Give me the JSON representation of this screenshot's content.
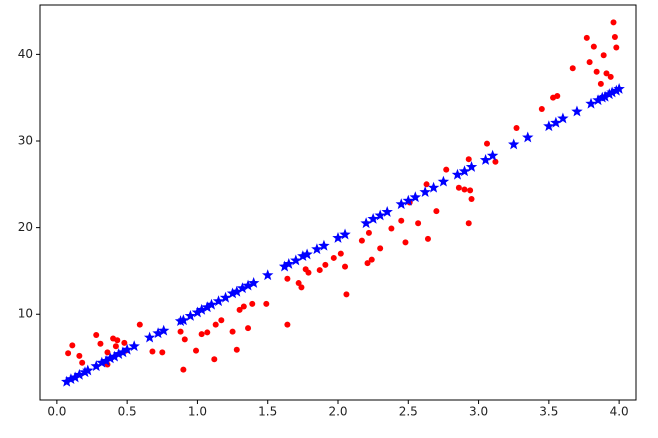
{
  "chart_data": {
    "type": "scatter",
    "xlim": [
      -0.12,
      4.12
    ],
    "ylim": [
      0.1,
      45.7
    ],
    "xticks": [
      {
        "value": 0,
        "label": "0.0"
      },
      0.5,
      {
        "value": 1,
        "label": "1.0"
      },
      1.5,
      {
        "value": 2,
        "label": "2.0"
      },
      2.5,
      {
        "value": 3,
        "label": "3.0"
      },
      3.5,
      {
        "value": 4,
        "label": "4.0"
      }
    ],
    "yticks": [
      10,
      20,
      30,
      40
    ],
    "series": [
      {
        "color": "#ff0000",
        "marker": "circle",
        "x": [
          0.08,
          0.11,
          0.16,
          0.18,
          0.28,
          0.31,
          0.36,
          0.36,
          0.4,
          0.42,
          0.43,
          0.48,
          0.49,
          0.59,
          0.68,
          0.75,
          0.88,
          0.9,
          0.91,
          0.99,
          1.03,
          1.07,
          1.12,
          1.13,
          1.17,
          1.25,
          1.28,
          1.3,
          1.33,
          1.36,
          1.39,
          1.49,
          1.64,
          1.64,
          1.72,
          1.74,
          1.77,
          1.79,
          1.87,
          1.91,
          1.97,
          2.02,
          2.06,
          2.05,
          2.17,
          2.21,
          2.22,
          2.24,
          2.3,
          2.38,
          2.45,
          2.48,
          2.51,
          2.57,
          2.63,
          2.64,
          2.7,
          2.77,
          2.86,
          2.9,
          2.93,
          2.94,
          2.95,
          2.93,
          3.06,
          3.12,
          3.27,
          3.45,
          3.53,
          3.56,
          3.67,
          3.77,
          3.82,
          3.79,
          3.84,
          3.87,
          3.89,
          3.91,
          3.94,
          3.96,
          3.97,
          3.98
        ],
        "values": [
          5.5,
          6.4,
          5.2,
          4.4,
          7.6,
          6.6,
          4.2,
          5.6,
          7.2,
          6.3,
          7.0,
          6.7,
          5.8,
          8.8,
          5.7,
          5.6,
          8.0,
          3.6,
          7.1,
          5.8,
          7.7,
          7.9,
          4.8,
          8.8,
          9.3,
          8.0,
          5.9,
          10.5,
          10.9,
          8.4,
          11.2,
          11.2,
          8.8,
          14.1,
          13.6,
          13.1,
          15.2,
          14.8,
          15.1,
          15.7,
          16.5,
          17.0,
          12.3,
          15.5,
          18.5,
          15.9,
          19.4,
          16.3,
          17.6,
          19.9,
          20.8,
          18.3,
          22.9,
          20.5,
          25.0,
          18.7,
          21.9,
          26.7,
          24.6,
          24.4,
          27.9,
          24.3,
          23.3,
          20.5,
          29.7,
          27.6,
          31.5,
          33.7,
          35.0,
          35.2,
          38.4,
          41.9,
          40.9,
          39.1,
          38.0,
          36.6,
          39.9,
          37.8,
          37.4,
          43.7,
          42.0,
          40.8
        ]
      },
      {
        "color": "#0000ff",
        "marker": "star",
        "x": [
          0.07,
          0.1,
          0.13,
          0.16,
          0.2,
          0.22,
          0.28,
          0.32,
          0.35,
          0.38,
          0.41,
          0.44,
          0.47,
          0.5,
          0.55,
          0.66,
          0.72,
          0.76,
          0.88,
          0.9,
          0.95,
          1.0,
          1.03,
          1.07,
          1.1,
          1.15,
          1.2,
          1.25,
          1.28,
          1.32,
          1.36,
          1.4,
          1.5,
          1.62,
          1.65,
          1.7,
          1.75,
          1.78,
          1.85,
          1.9,
          2.0,
          2.05,
          2.2,
          2.25,
          2.3,
          2.35,
          2.45,
          2.5,
          2.55,
          2.62,
          2.68,
          2.75,
          2.85,
          2.9,
          2.95,
          3.05,
          3.1,
          3.25,
          3.35,
          3.5,
          3.55,
          3.6,
          3.7,
          3.8,
          3.85,
          3.88,
          3.9,
          3.93,
          3.95,
          3.98,
          4.0
        ],
        "values": [
          2.2,
          2.5,
          2.7,
          3.0,
          3.3,
          3.5,
          4.0,
          4.4,
          4.6,
          4.9,
          5.1,
          5.4,
          5.6,
          5.9,
          6.3,
          7.3,
          7.8,
          8.1,
          9.2,
          9.3,
          9.8,
          10.2,
          10.5,
          10.8,
          11.1,
          11.5,
          11.9,
          12.4,
          12.6,
          13.0,
          13.3,
          13.6,
          14.5,
          15.5,
          15.8,
          16.2,
          16.7,
          16.9,
          17.5,
          17.9,
          18.8,
          19.2,
          20.5,
          21.0,
          21.4,
          21.8,
          22.7,
          23.1,
          23.5,
          24.1,
          24.6,
          25.3,
          26.1,
          26.5,
          27.0,
          27.8,
          28.3,
          29.6,
          30.4,
          31.7,
          32.1,
          32.6,
          33.4,
          34.3,
          34.7,
          35.0,
          35.1,
          35.4,
          35.6,
          35.8,
          36.0
        ]
      }
    ]
  }
}
